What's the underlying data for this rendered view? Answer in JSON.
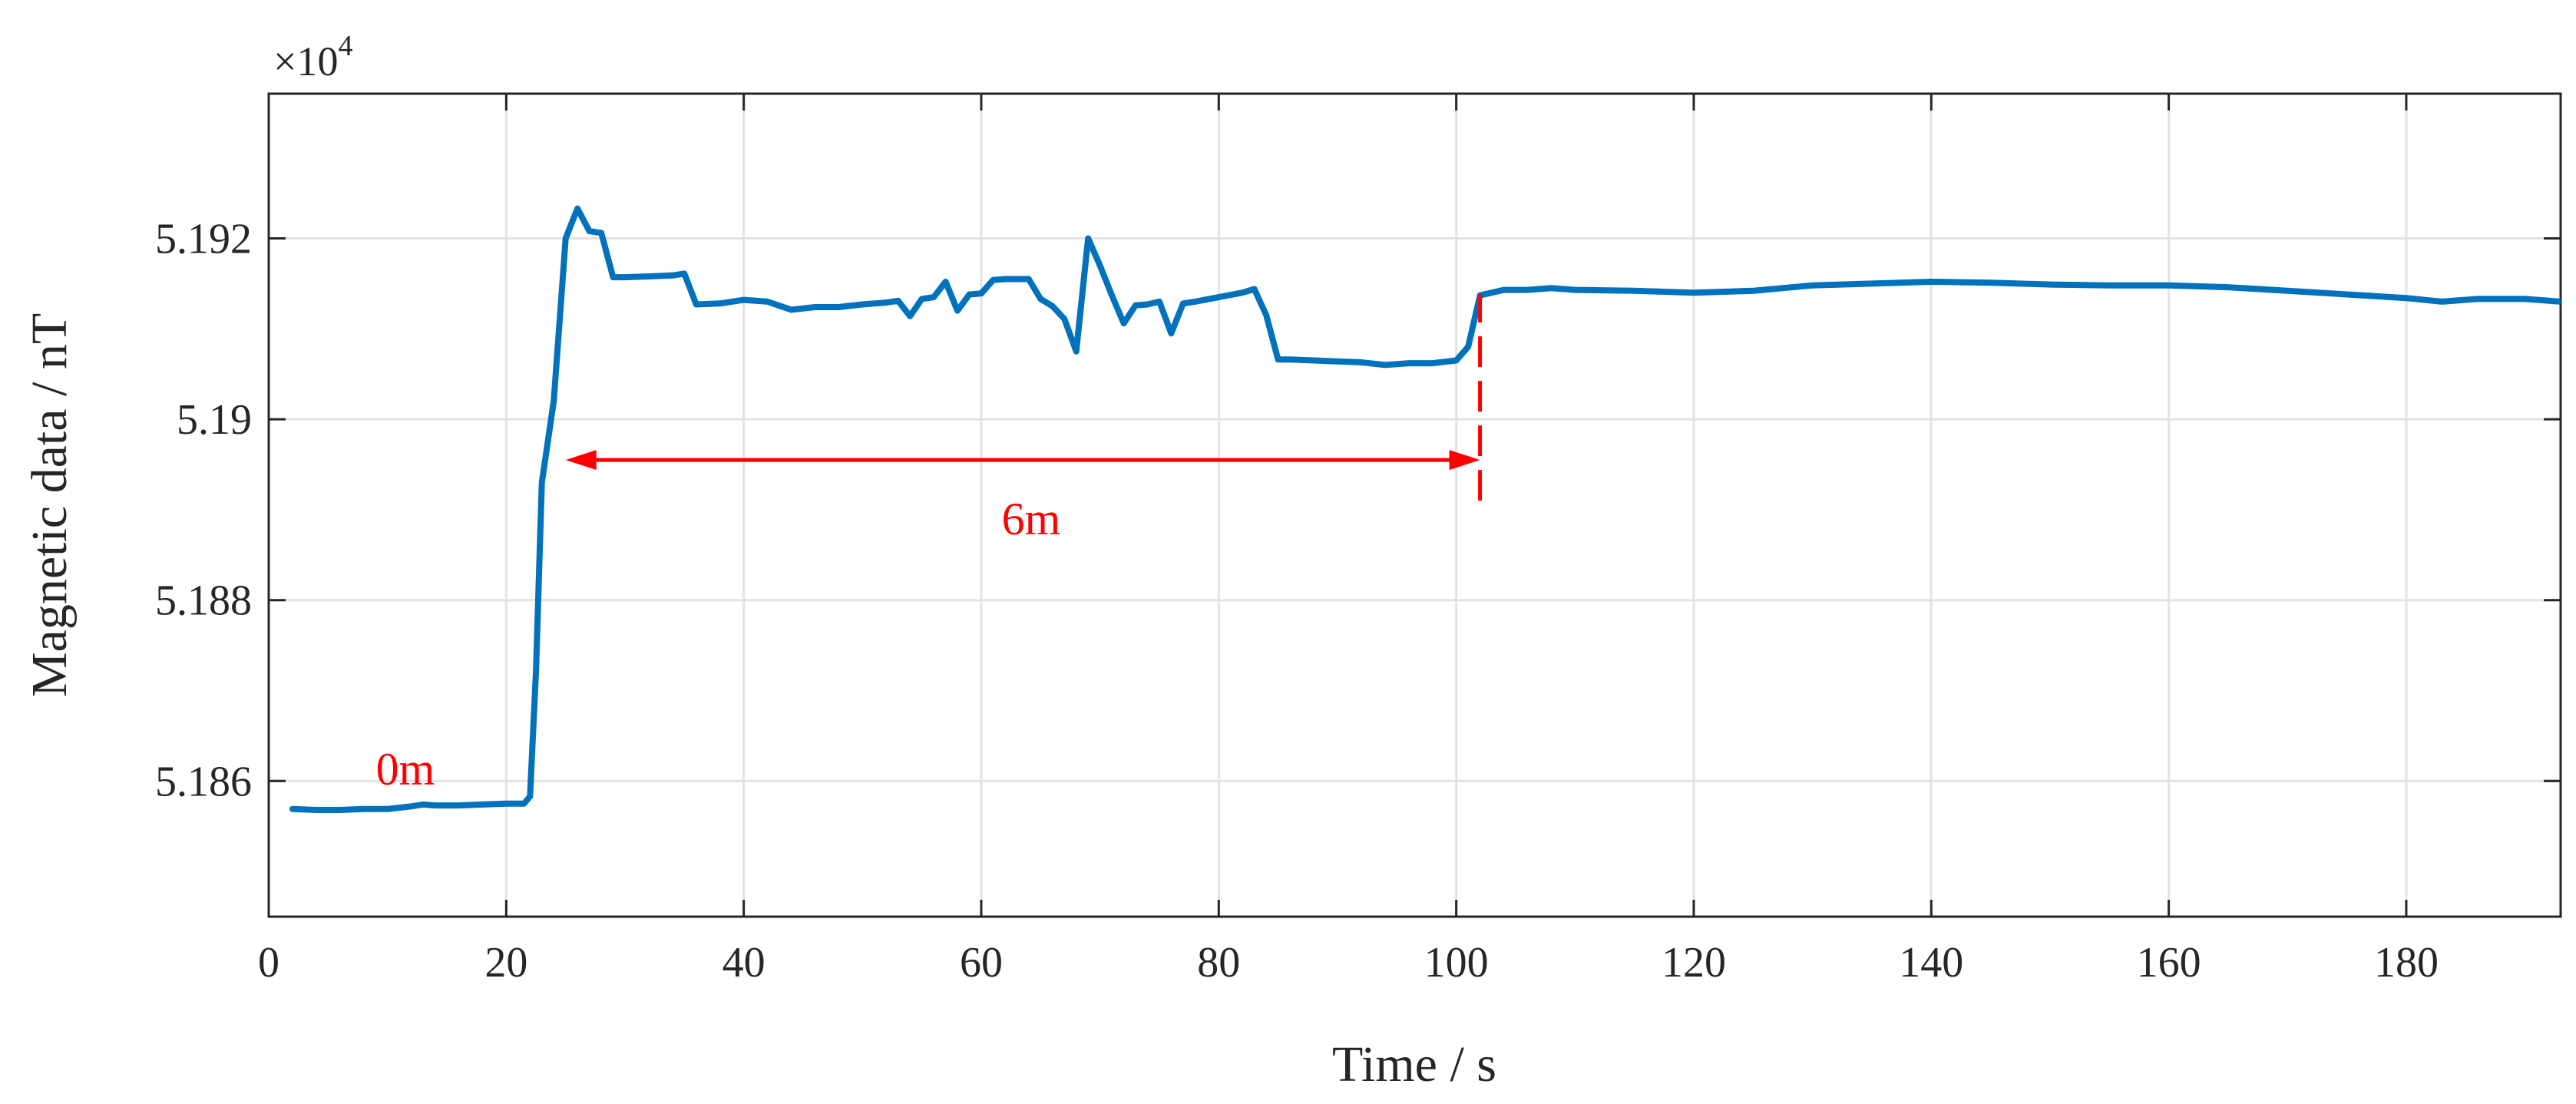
{
  "chart_data": {
    "type": "line",
    "title": "",
    "xlabel": "Time / s",
    "ylabel": "Magnetic data / nT",
    "y_exponent_label": "×10",
    "y_exponent_power": "4",
    "xlim": [
      0,
      193
    ],
    "ylim": [
      5.1845,
      5.1936
    ],
    "x_ticks": [
      0,
      20,
      40,
      60,
      80,
      100,
      120,
      140,
      160,
      180
    ],
    "x_tick_labels": [
      "0",
      "20",
      "40",
      "60",
      "80",
      "100",
      "120",
      "140",
      "160",
      "180"
    ],
    "y_ticks": [
      5.186,
      5.188,
      5.19,
      5.192
    ],
    "y_tick_labels": [
      "5.186",
      "5.188",
      "5.19",
      "5.192"
    ],
    "grid": true,
    "line_color": "#0072BD",
    "annotation_color": "#ff0000",
    "series": [
      {
        "x": [
          2,
          4,
          6,
          8,
          10,
          12,
          13,
          14,
          16,
          18,
          20,
          21.5,
          22,
          22.5,
          23,
          24,
          25,
          26,
          27,
          28,
          29,
          30,
          32,
          34,
          35,
          36,
          38,
          40,
          42,
          44,
          46,
          48,
          50,
          52,
          53,
          54,
          55,
          56,
          57,
          58,
          59,
          60,
          61,
          62,
          64,
          65,
          66,
          67,
          68,
          69,
          70,
          71,
          72,
          73,
          74,
          75,
          76,
          77,
          78,
          80,
          82,
          83,
          84,
          85,
          86,
          88,
          90,
          92,
          94,
          96,
          98,
          100,
          101,
          102,
          104,
          106,
          108,
          110,
          115,
          120,
          125,
          130,
          135,
          140,
          145,
          150,
          155,
          160,
          165,
          170,
          175,
          180,
          183,
          186,
          190,
          193
        ],
        "y": [
          5.18569,
          5.18568,
          5.18568,
          5.18569,
          5.18569,
          5.18572,
          5.18574,
          5.18573,
          5.18573,
          5.18574,
          5.18575,
          5.18575,
          5.18583,
          5.1872,
          5.1893,
          5.1902,
          5.192,
          5.19233,
          5.19208,
          5.19206,
          5.19157,
          5.19157,
          5.19158,
          5.19159,
          5.19161,
          5.19127,
          5.19128,
          5.19132,
          5.1913,
          5.19121,
          5.19124,
          5.19124,
          5.19127,
          5.19129,
          5.19131,
          5.19114,
          5.19133,
          5.19135,
          5.19152,
          5.1912,
          5.19138,
          5.19139,
          5.19154,
          5.19155,
          5.19155,
          5.19133,
          5.19125,
          5.19111,
          5.19075,
          5.192,
          5.1917,
          5.19137,
          5.19106,
          5.19126,
          5.19127,
          5.1913,
          5.19095,
          5.19128,
          5.1913,
          5.19135,
          5.1914,
          5.19144,
          5.19115,
          5.19066,
          5.19066,
          5.19065,
          5.19064,
          5.19063,
          5.1906,
          5.19062,
          5.19062,
          5.19065,
          5.1908,
          5.19137,
          5.19143,
          5.19143,
          5.19145,
          5.19143,
          5.19142,
          5.1914,
          5.19142,
          5.19148,
          5.1915,
          5.19152,
          5.19151,
          5.19149,
          5.19148,
          5.19148,
          5.19146,
          5.19142,
          5.19138,
          5.19134,
          5.1913,
          5.19133,
          5.19133,
          5.1913
        ]
      }
    ],
    "annotations": {
      "start_label": "0m",
      "span_label": "6m",
      "span_arrow_x": [
        25,
        102
      ],
      "span_arrow_y": 5.18955,
      "vline_x": 102,
      "vline_y": [
        5.1891,
        5.19138
      ]
    }
  }
}
